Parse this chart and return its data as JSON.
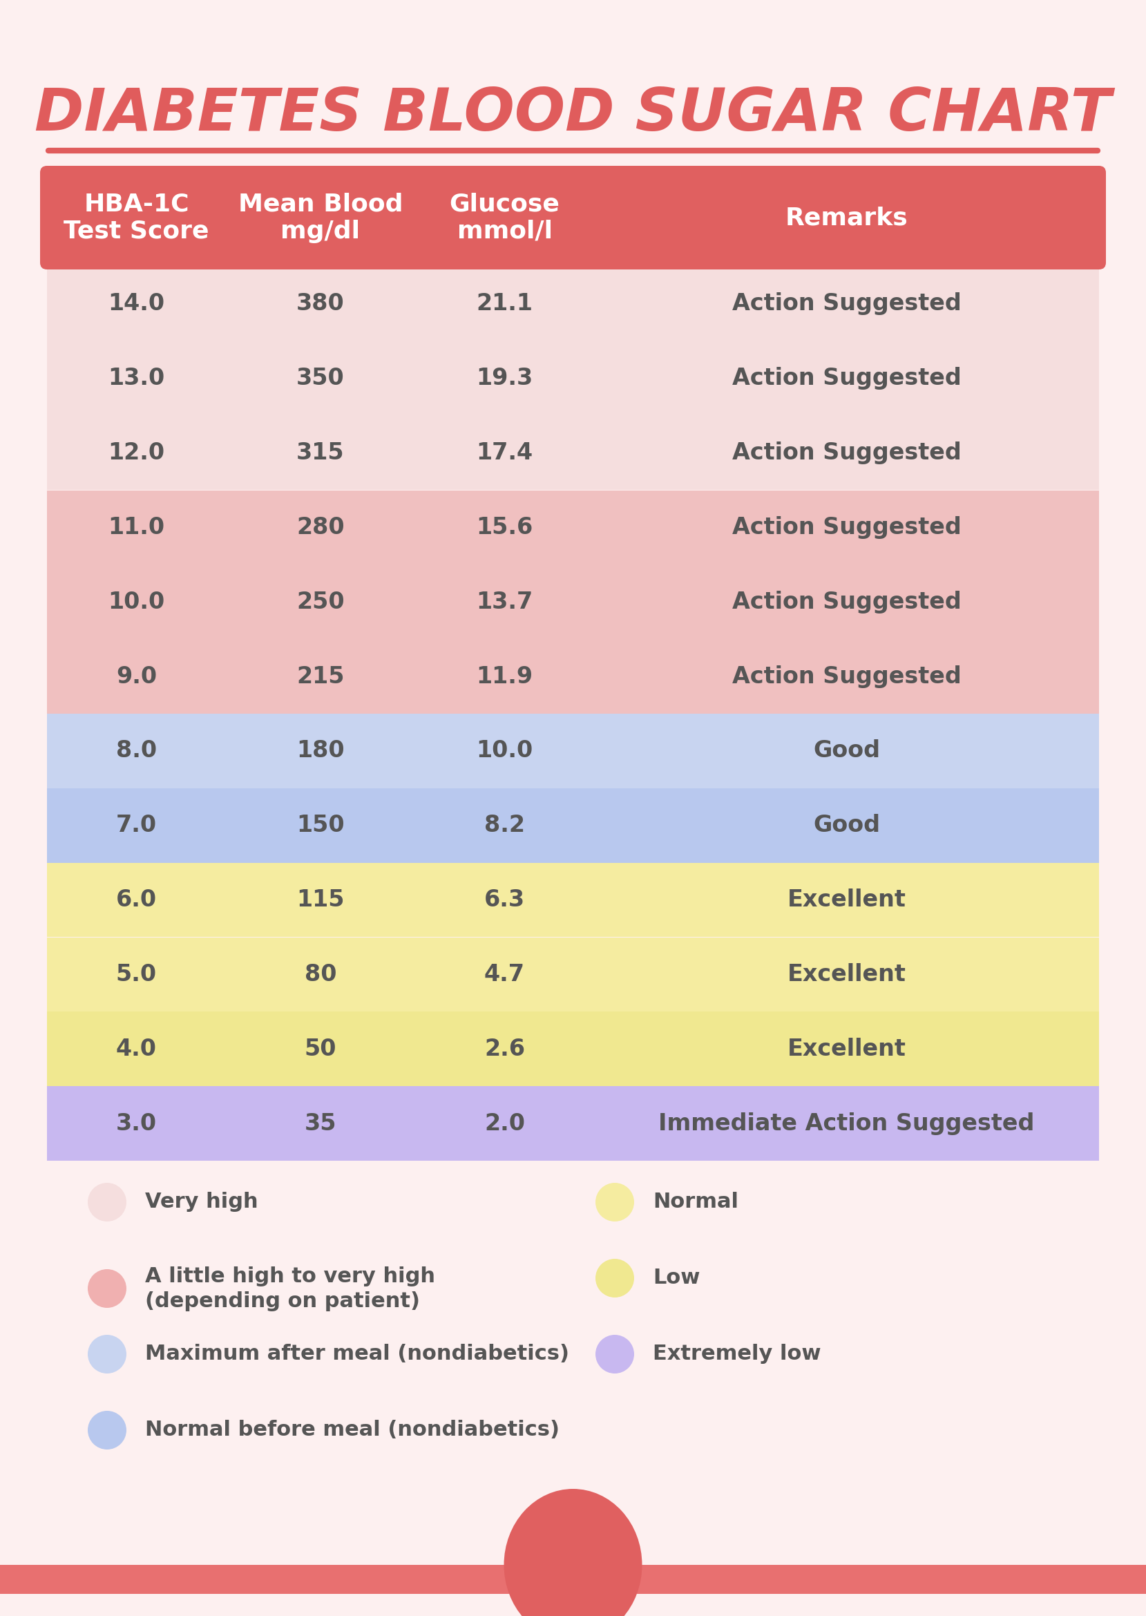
{
  "title": "DIABETES BLOOD SUGAR CHART",
  "title_color": "#E05C5C",
  "background_color": "#FDF0F0",
  "header_bg": "#E06060",
  "header_text_color": "#FFFFFF",
  "header_labels": [
    "HBA-1C\nTest Score",
    "Mean Blood\nmg/dl",
    "Glucose\nmmol/l",
    "Remarks"
  ],
  "rows": [
    {
      "hba": "14.0",
      "blood": "380",
      "glucose": "21.1",
      "remark": "Action Suggested",
      "bg": "#F5DEDE"
    },
    {
      "hba": "13.0",
      "blood": "350",
      "glucose": "19.3",
      "remark": "Action Suggested",
      "bg": "#F5DEDE"
    },
    {
      "hba": "12.0",
      "blood": "315",
      "glucose": "17.4",
      "remark": "Action Suggested",
      "bg": "#F5DEDE"
    },
    {
      "hba": "11.0",
      "blood": "280",
      "glucose": "15.6",
      "remark": "Action Suggested",
      "bg": "#F0C0C0"
    },
    {
      "hba": "10.0",
      "blood": "250",
      "glucose": "13.7",
      "remark": "Action Suggested",
      "bg": "#F0C0C0"
    },
    {
      "hba": "9.0",
      "blood": "215",
      "glucose": "11.9",
      "remark": "Action Suggested",
      "bg": "#F0C0C0"
    },
    {
      "hba": "8.0",
      "blood": "180",
      "glucose": "10.0",
      "remark": "Good",
      "bg": "#C8D4F0"
    },
    {
      "hba": "7.0",
      "blood": "150",
      "glucose": "8.2",
      "remark": "Good",
      "bg": "#B8C8EE"
    },
    {
      "hba": "6.0",
      "blood": "115",
      "glucose": "6.3",
      "remark": "Excellent",
      "bg": "#F5ECA0"
    },
    {
      "hba": "5.0",
      "blood": "80",
      "glucose": "4.7",
      "remark": "Excellent",
      "bg": "#F5ECA0"
    },
    {
      "hba": "4.0",
      "blood": "50",
      "glucose": "2.6",
      "remark": "Excellent",
      "bg": "#F0E890"
    },
    {
      "hba": "3.0",
      "blood": "35",
      "glucose": "2.0",
      "remark": "Immediate Action Suggested",
      "bg": "#C8B8F0"
    }
  ],
  "legend_items_left": [
    {
      "color": "#F5DEDE",
      "label": "Very high",
      "multiline": false
    },
    {
      "color": "#F0B0B0",
      "label": "A little high to very high\n(depending on patient)",
      "multiline": true
    },
    {
      "color": "#C8D4F0",
      "label": "Maximum after meal (nondiabetics)",
      "multiline": false
    },
    {
      "color": "#B8C8EE",
      "label": "Normal before meal (nondiabetics)",
      "multiline": false
    }
  ],
  "legend_items_right": [
    {
      "color": "#F5ECA0",
      "label": "Normal",
      "multiline": false
    },
    {
      "color": "#F0E890",
      "label": "Low",
      "multiline": false
    },
    {
      "color": "#C8B8F0",
      "label": "Extremely low",
      "multiline": false
    }
  ],
  "divider_color": "#E05C5C",
  "text_color": "#555555",
  "bottom_bar_color": "#E87070",
  "ellipse_color": "#E06060"
}
